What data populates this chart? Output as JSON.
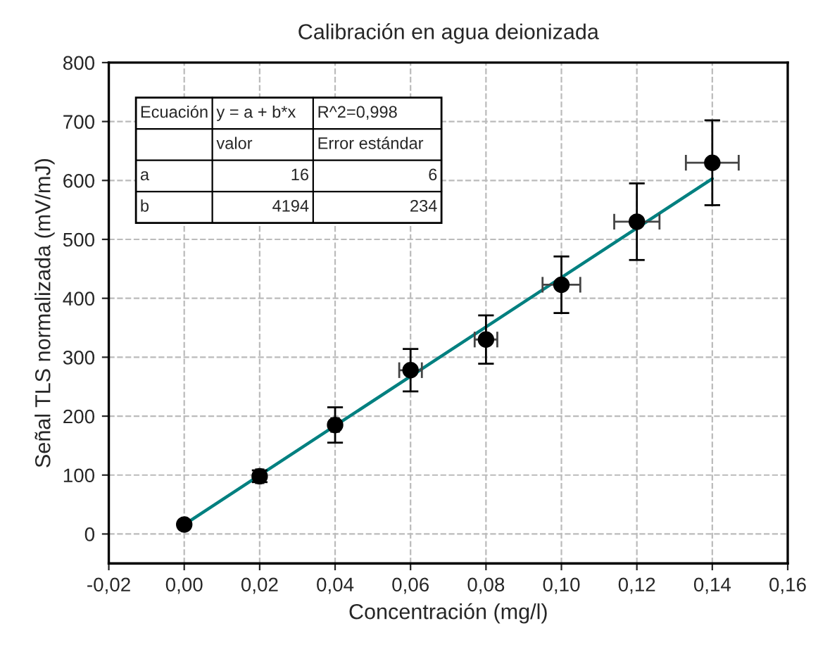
{
  "chart_data": {
    "type": "scatter",
    "title": "Calibración en agua deionizada",
    "xlabel": "Concentración (mg/l)",
    "ylabel": "Señal TLS normalizada (mV/mJ)",
    "series": [
      {
        "color": "#000000",
        "x": [
          0.0,
          0.02,
          0.04,
          0.06,
          0.08,
          0.1,
          0.12,
          0.14
        ],
        "values": [
          16,
          98,
          185,
          278,
          330,
          423,
          530,
          630
        ],
        "errors": [
          null,
          10,
          30,
          36,
          41,
          48,
          65,
          72
        ],
        "xerrors": [
          null,
          0.001,
          0.001,
          0.003,
          0.003,
          0.005,
          0.006,
          0.007
        ],
        "marker": "circle"
      },
      {
        "type": "line",
        "color": "#008080",
        "x": [
          0.0,
          0.14
        ],
        "values": [
          16,
          603
        ],
        "marker": "none",
        "line_style": "solid"
      }
    ],
    "annotations": [
      "Ecuación",
      "y = a + b*x",
      "R^2=0,998",
      "valor",
      "Error estándar",
      "a",
      "16",
      "6",
      "b",
      "4194",
      "234"
    ],
    "xlim": [
      -0.02,
      0.16
    ],
    "xticks": [
      {
        "value": -0.02,
        "label": "-0,02"
      },
      {
        "value": 0.0,
        "label": "0,00"
      },
      {
        "value": 0.02,
        "label": "0,02"
      },
      {
        "value": 0.04,
        "label": "0,04"
      },
      {
        "value": 0.06,
        "label": "0,06"
      },
      {
        "value": 0.08,
        "label": "0,08"
      },
      {
        "value": 0.1,
        "label": "0,10"
      },
      {
        "value": 0.12,
        "label": "0,12"
      },
      {
        "value": 0.14,
        "label": "0,14"
      },
      {
        "value": 0.16,
        "label": "0,16"
      }
    ],
    "ylim": [
      -50,
      800
    ],
    "yticks": [
      0,
      100,
      200,
      300,
      400,
      500,
      600,
      700,
      800
    ],
    "grid": true
  }
}
